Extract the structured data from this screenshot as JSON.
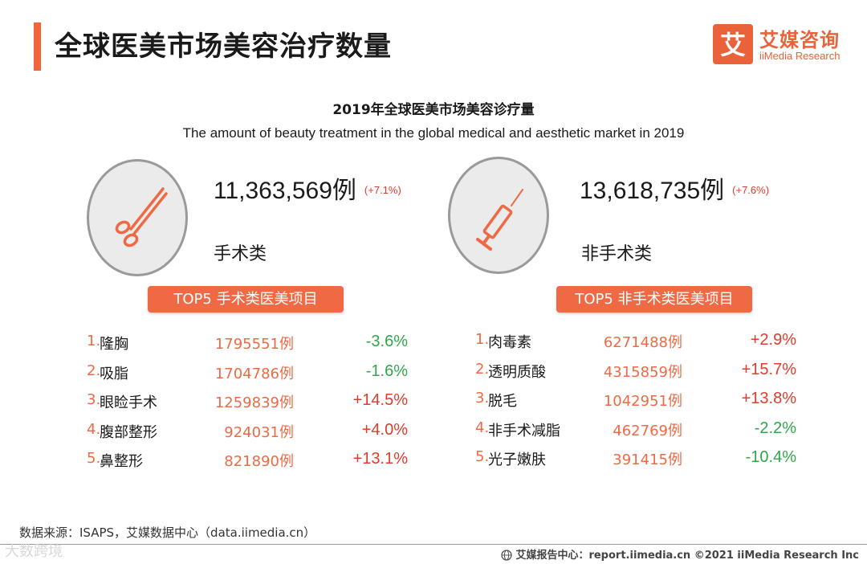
{
  "header": {
    "title": "全球医美市场美容治疗数量",
    "logo_cn": "艾媒咨询",
    "logo_en": "iiMedia Research",
    "logo_mark": "艾"
  },
  "chart_data": {
    "type": "table",
    "title": "2019年全球医美市场美容诊疗量",
    "subtitle": "The amount of beauty treatment in the global medical and aesthetic market in 2019",
    "categories": [
      {
        "name": "手术类",
        "icon": "scissors-icon",
        "total": 11363569,
        "total_display": "11,363,569",
        "unit": "例",
        "growth": "(+7.1%)",
        "top_title": "TOP5 手术类医美项目",
        "items": [
          {
            "rank": "1.",
            "name": "隆胸",
            "value": 1795551,
            "value_display": "1795551例",
            "change": "-3.6%"
          },
          {
            "rank": "2.",
            "name": "吸脂",
            "value": 1704786,
            "value_display": "1704786例",
            "change": "-1.6%"
          },
          {
            "rank": "3.",
            "name": "眼睑手术",
            "value": 1259839,
            "value_display": "1259839例",
            "change": "+14.5%"
          },
          {
            "rank": "4.",
            "name": "腹部整形",
            "value": 924031,
            "value_display": "924031例",
            "change": "+4.0%"
          },
          {
            "rank": "5.",
            "name": "鼻整形",
            "value": 821890,
            "value_display": "821890例",
            "change": "+13.1%"
          }
        ]
      },
      {
        "name": "非手术类",
        "icon": "syringe-icon",
        "total": 13618735,
        "total_display": "13,618,735",
        "unit": "例",
        "growth": "(+7.6%)",
        "top_title": "TOP5 非手术类医美项目",
        "items": [
          {
            "rank": "1.",
            "name": "肉毒素",
            "value": 6271488,
            "value_display": "6271488例",
            "change": "+2.9%"
          },
          {
            "rank": "2.",
            "name": "透明质酸",
            "value": 4315859,
            "value_display": "4315859例",
            "change": "+15.7%"
          },
          {
            "rank": "3.",
            "name": "脱毛",
            "value": 1042951,
            "value_display": "1042951例",
            "change": "+13.8%"
          },
          {
            "rank": "4.",
            "name": "非手术减脂",
            "value": 462769,
            "value_display": "462769例",
            "change": "-2.2%"
          },
          {
            "rank": "5.",
            "name": "光子嫩肤",
            "value": 391415,
            "value_display": "391415例",
            "change": "-10.4%"
          }
        ]
      }
    ]
  },
  "footer": {
    "source": "数据来源：ISAPS，艾媒数据中心（data.iimedia.cn）",
    "copyright": "艾媒报告中心：report.iimedia.cn   ©2021  iiMedia Research  Inc",
    "watermark": "大数跨境"
  },
  "colors": {
    "accent": "#f0643c",
    "positive": "#e03c2c",
    "negative": "#2ea84a",
    "value": "#ef6a44"
  }
}
